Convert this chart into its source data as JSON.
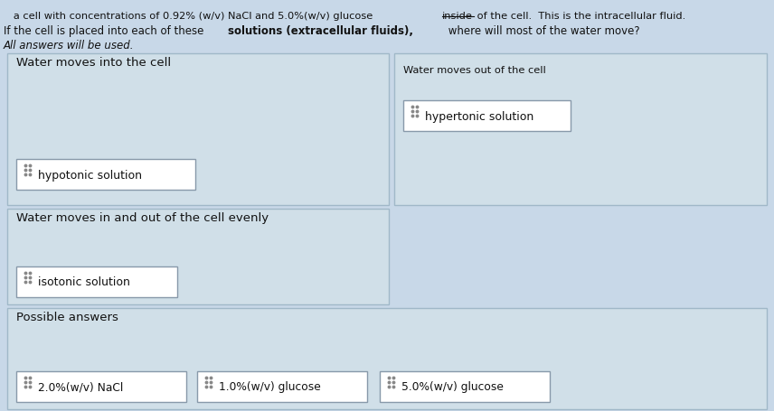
{
  "bg_color": "#c8d8e8",
  "header_text3": "All answers will be used.",
  "col1_header": "Water moves into the cell",
  "col2_header": "Water moves out of the cell",
  "col1_item": "hypotonic solution",
  "col2_item": "hypertonic solution",
  "row2_header": "Water moves in and out of the cell evenly",
  "row2_item": "isotonic solution",
  "possible_header": "Possible answers",
  "possible_items": [
    "2.0%(w/v) NaCl",
    "1.0%(w/v) glucose",
    "5.0%(w/v) glucose"
  ],
  "box_bg": "#d0dfe8",
  "box_border": "#a0b8c8",
  "item_box_bg": "#ffffff",
  "item_box_border": "#8899aa",
  "text_color": "#111111",
  "dot_color": "#888888"
}
